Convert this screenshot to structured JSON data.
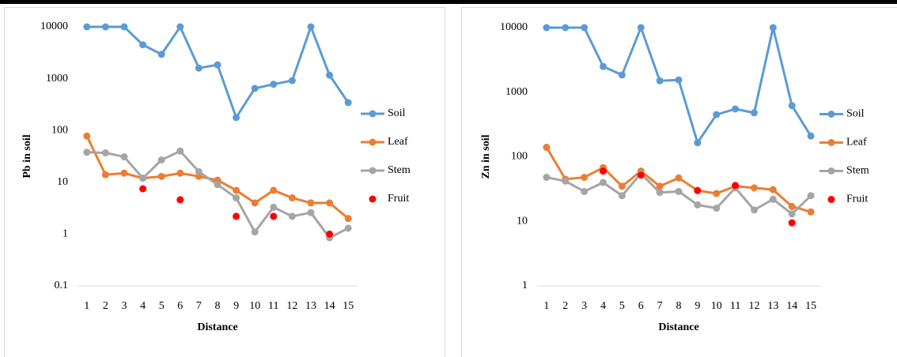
{
  "chart_data": [
    {
      "type": "line",
      "x_label": "Distance",
      "y_label": "Pb in soil",
      "log_y": true,
      "legend": "right",
      "categories": [
        "1",
        "2",
        "3",
        "4",
        "5",
        "6",
        "7",
        "8",
        "9",
        "10",
        "11",
        "12",
        "13",
        "14",
        "15"
      ],
      "ylim": [
        0.1,
        10000
      ],
      "yticks": [
        0.1,
        1,
        10,
        100,
        1000,
        10000
      ],
      "series": [
        {
          "name": "Soil",
          "color": "#5b9bd5",
          "line": true,
          "values": [
            10000,
            10000,
            10000,
            4500,
            2950,
            10000,
            1600,
            1850,
            178,
            650,
            780,
            920,
            10000,
            1170,
            345
          ]
        },
        {
          "name": "Leaf",
          "color": "#ed7d31",
          "line": true,
          "values": [
            78,
            14,
            15,
            12,
            13,
            15,
            13,
            11,
            7,
            4,
            7,
            5,
            4,
            4,
            2
          ]
        },
        {
          "name": "Stem",
          "color": "#a5a5a5",
          "line": true,
          "values": [
            38,
            37,
            31,
            12,
            27,
            40,
            16,
            9,
            5,
            1.1,
            3.3,
            2.2,
            2.6,
            0.85,
            1.3
          ]
        },
        {
          "name": "Fruit",
          "color": "#ff0000",
          "line": false,
          "values": [
            null,
            null,
            null,
            7.5,
            null,
            4.6,
            null,
            null,
            2.2,
            null,
            2.2,
            null,
            null,
            1,
            null
          ]
        }
      ]
    },
    {
      "type": "line",
      "x_label": "Distance",
      "y_label": "Zn in soil",
      "log_y": true,
      "legend": "right",
      "categories": [
        "1",
        "2",
        "3",
        "4",
        "5",
        "6",
        "7",
        "8",
        "9",
        "10",
        "11",
        "12",
        "13",
        "14",
        "15"
      ],
      "ylim": [
        1,
        10000
      ],
      "yticks": [
        1,
        10,
        100,
        1000,
        10000
      ],
      "series": [
        {
          "name": "Soil",
          "color": "#5b9bd5",
          "line": true,
          "values": [
            10000,
            10000,
            10000,
            2500,
            1850,
            10000,
            1500,
            1550,
            165,
            450,
            550,
            480,
            10000,
            620,
            210
          ]
        },
        {
          "name": "Leaf",
          "color": "#ed7d31",
          "line": true,
          "values": [
            140,
            45,
            48,
            68,
            35,
            60,
            35,
            47,
            30,
            27,
            35,
            33,
            31,
            17,
            14
          ]
        },
        {
          "name": "Stem",
          "color": "#a5a5a5",
          "line": true,
          "values": [
            48,
            42,
            29,
            40,
            25,
            55,
            28,
            29,
            18,
            16,
            33,
            15,
            22,
            13,
            25
          ]
        },
        {
          "name": "Fruit",
          "color": "#ff0000",
          "line": false,
          "values": [
            null,
            null,
            null,
            60,
            null,
            52,
            null,
            null,
            30,
            null,
            36,
            null,
            null,
            9.5,
            null
          ]
        }
      ]
    }
  ]
}
